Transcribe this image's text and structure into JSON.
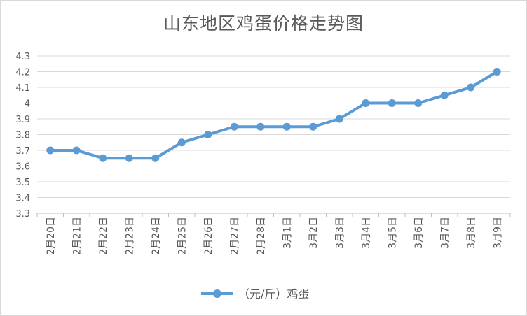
{
  "chart_data": {
    "type": "line",
    "title": "山东地区鸡蛋价格走势图",
    "categories": [
      "2月20日",
      "2月21日",
      "2月22日",
      "2月23日",
      "2月24日",
      "2月25日",
      "2月26日",
      "2月27日",
      "2月28日",
      "3月1日",
      "3月2日",
      "3月3日",
      "3月4日",
      "3月5日",
      "3月6日",
      "3月7日",
      "3月8日",
      "3月9日"
    ],
    "series": [
      {
        "name": "（元/斤）鸡蛋",
        "color": "#5b9bd5",
        "values": [
          3.7,
          3.7,
          3.65,
          3.65,
          3.65,
          3.75,
          3.8,
          3.85,
          3.85,
          3.85,
          3.85,
          3.9,
          4.0,
          4.0,
          4.0,
          4.05,
          4.1,
          4.2
        ]
      }
    ],
    "ylim": [
      3.3,
      4.3
    ],
    "yticks": [
      "3.3",
      "3.4",
      "3.5",
      "3.6",
      "3.7",
      "3.8",
      "3.9",
      "4",
      "4.1",
      "4.2",
      "4.3"
    ],
    "grid": true,
    "legend_position": "bottom"
  }
}
